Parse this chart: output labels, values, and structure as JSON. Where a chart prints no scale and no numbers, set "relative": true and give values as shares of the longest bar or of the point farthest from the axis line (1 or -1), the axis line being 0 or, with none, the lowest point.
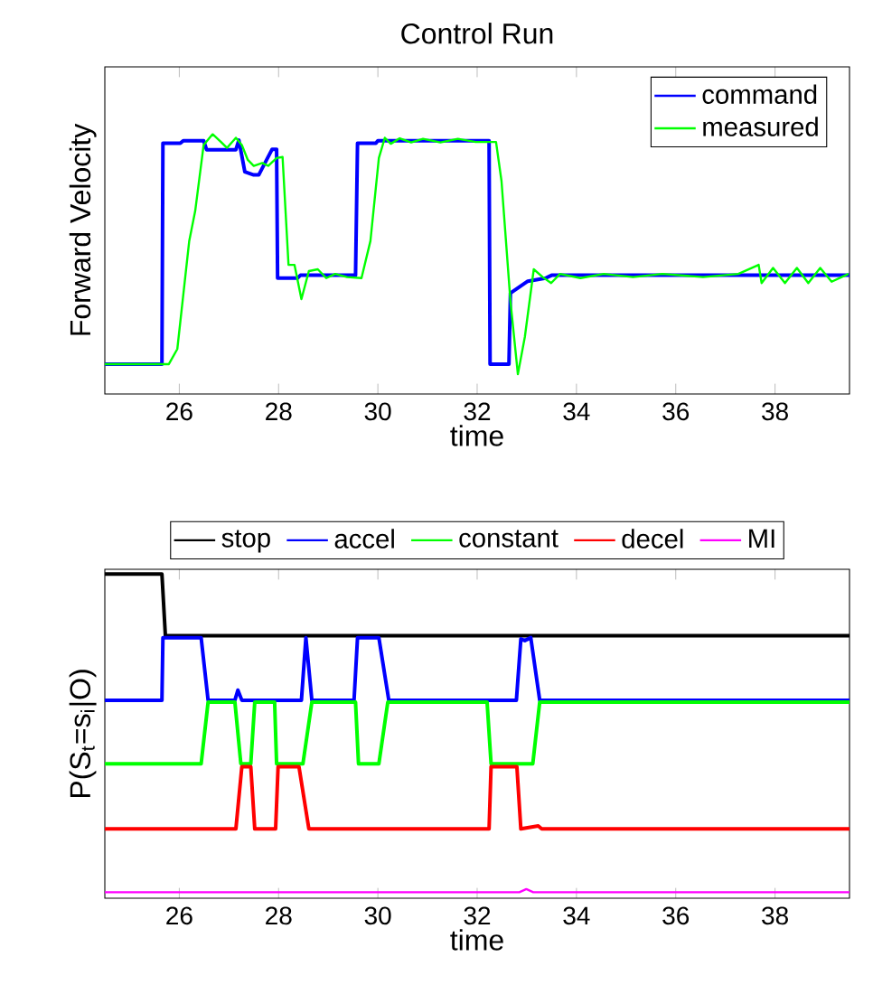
{
  "chart_data": [
    {
      "type": "line",
      "title": "Control Run",
      "xlabel": "time",
      "ylabel": "Forward Velocity",
      "relative": true,
      "legend": "top right",
      "xlim": [
        24.5,
        39.5
      ],
      "xticks": [
        26,
        28,
        30,
        32,
        34,
        36,
        38
      ],
      "series": [
        {
          "name": "command",
          "color": "#0000ff",
          "x": [
            24.5,
            25.65,
            25.67,
            26.02,
            26.08,
            26.49,
            26.55,
            27.14,
            27.2,
            27.32,
            27.5,
            27.6,
            27.87,
            27.96,
            27.98,
            28.38,
            28.44,
            29.55,
            29.59,
            29.96,
            30.0,
            32.24,
            32.26,
            32.64,
            32.67,
            33.02,
            33.38,
            33.5,
            39.5
          ],
          "values": [
            0.115,
            0.115,
            0.965,
            0.965,
            0.975,
            0.975,
            0.94,
            0.94,
            0.977,
            0.855,
            0.843,
            0.843,
            0.942,
            0.942,
            0.446,
            0.446,
            0.457,
            0.457,
            0.965,
            0.965,
            0.975,
            0.975,
            0.115,
            0.115,
            0.388,
            0.434,
            0.446,
            0.457,
            0.457
          ]
        },
        {
          "name": "measured",
          "color": "#00ff00",
          "x": [
            24.5,
            25.79,
            25.96,
            26.2,
            26.32,
            26.49,
            26.67,
            26.84,
            26.96,
            27.14,
            27.26,
            27.38,
            27.5,
            27.67,
            27.79,
            27.96,
            28.08,
            28.2,
            28.32,
            28.46,
            28.61,
            28.79,
            28.96,
            29.14,
            29.38,
            29.67,
            29.85,
            30.02,
            30.14,
            30.26,
            30.44,
            30.67,
            30.91,
            31.26,
            31.61,
            31.97,
            32.38,
            32.49,
            32.67,
            32.82,
            32.96,
            33.14,
            33.32,
            33.49,
            33.67,
            34.08,
            34.55,
            35.14,
            35.73,
            36.55,
            37.26,
            37.67,
            37.73,
            37.96,
            38.2,
            38.44,
            38.67,
            38.91,
            39.14,
            39.48
          ],
          "values": [
            0.115,
            0.115,
            0.173,
            0.589,
            0.704,
            0.958,
            1.0,
            0.97,
            0.947,
            0.986,
            0.958,
            0.901,
            0.878,
            0.889,
            0.878,
            0.908,
            0.912,
            0.497,
            0.497,
            0.365,
            0.473,
            0.48,
            0.446,
            0.462,
            0.45,
            0.446,
            0.589,
            0.908,
            0.986,
            0.963,
            0.984,
            0.968,
            0.982,
            0.968,
            0.982,
            0.97,
            0.97,
            0.82,
            0.358,
            0.076,
            0.219,
            0.48,
            0.45,
            0.427,
            0.462,
            0.446,
            0.462,
            0.45,
            0.462,
            0.45,
            0.462,
            0.497,
            0.427,
            0.485,
            0.427,
            0.485,
            0.427,
            0.485,
            0.432,
            0.462
          ]
        }
      ]
    },
    {
      "type": "line",
      "xlabel": "time",
      "ylabel": "P(S$_{t}$=s$_{i}$|O)",
      "relative": true,
      "legend": "top",
      "xlim": [
        24.5,
        39.5
      ],
      "xticks": [
        26,
        28,
        30,
        32,
        34,
        36,
        38
      ],
      "series": [
        {
          "name": "stop",
          "color": "#000000",
          "x": [
            24.5,
            25.65,
            25.72,
            39.5
          ],
          "values": [
            1.0,
            1.0,
            0.81,
            0.81
          ]
        },
        {
          "name": "accel",
          "color": "#0000ff",
          "x": [
            24.5,
            25.65,
            25.67,
            26.44,
            26.58,
            27.12,
            27.18,
            27.26,
            28.46,
            28.55,
            28.67,
            29.52,
            29.59,
            30.02,
            30.22,
            32.79,
            32.88,
            32.96,
            33.08,
            33.26,
            39.5
          ],
          "values": [
            0.611,
            0.611,
            0.804,
            0.804,
            0.611,
            0.611,
            0.642,
            0.611,
            0.611,
            0.804,
            0.611,
            0.611,
            0.804,
            0.804,
            0.611,
            0.611,
            0.8,
            0.795,
            0.804,
            0.611,
            0.611
          ]
        },
        {
          "name": "constant",
          "color": "#00ff00",
          "x": [
            24.5,
            26.44,
            26.58,
            27.12,
            27.24,
            27.44,
            27.52,
            27.92,
            27.96,
            28.49,
            28.67,
            29.55,
            29.61,
            30.02,
            30.2,
            32.2,
            32.28,
            33.12,
            33.26,
            39.5
          ],
          "values": [
            0.415,
            0.415,
            0.605,
            0.605,
            0.415,
            0.415,
            0.605,
            0.605,
            0.415,
            0.415,
            0.605,
            0.605,
            0.415,
            0.415,
            0.605,
            0.605,
            0.415,
            0.415,
            0.605,
            0.605
          ]
        },
        {
          "name": "decel",
          "color": "#ff0000",
          "x": [
            24.5,
            27.14,
            27.26,
            27.44,
            27.52,
            27.94,
            27.99,
            28.41,
            28.61,
            32.24,
            32.28,
            32.8,
            32.88,
            33.23,
            33.3,
            39.5
          ],
          "values": [
            0.214,
            0.214,
            0.406,
            0.406,
            0.214,
            0.214,
            0.406,
            0.406,
            0.214,
            0.214,
            0.406,
            0.406,
            0.214,
            0.223,
            0.214,
            0.214
          ]
        },
        {
          "name": "MI",
          "color": "#ff00ff",
          "x": [
            24.5,
            32.85,
            32.99,
            33.13,
            39.5
          ],
          "values": [
            0.0186,
            0.0186,
            0.028,
            0.0186,
            0.0186
          ]
        }
      ]
    }
  ]
}
